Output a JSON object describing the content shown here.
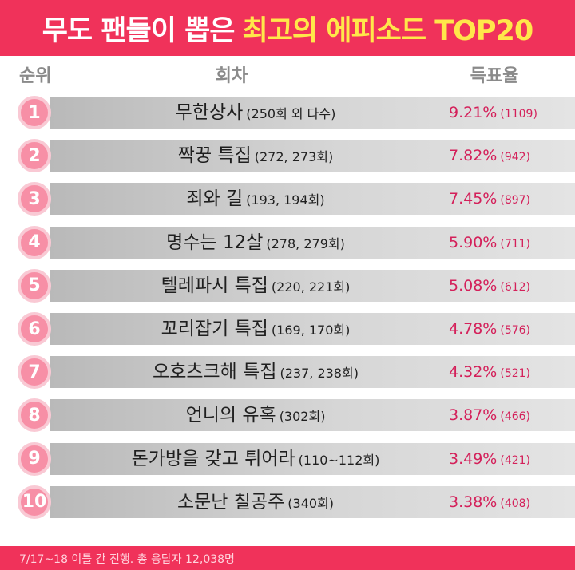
{
  "header": {
    "title_white": "무도 팬들이 뽑은",
    "title_yellow": "최고의 에피소드 TOP20"
  },
  "columns": {
    "rank": "순위",
    "episode": "회차",
    "vote": "득표율"
  },
  "chart_data": {
    "type": "table",
    "columns": [
      "순위",
      "회차",
      "득표율"
    ],
    "rows": [
      {
        "rank": "1",
        "name": "무한상사",
        "episodes": "(250회 외 다수)",
        "percent": "9.21%",
        "count": "(1109)"
      },
      {
        "rank": "2",
        "name": "짝꿍 특집",
        "episodes": "(272, 273회)",
        "percent": "7.82%",
        "count": "(942)"
      },
      {
        "rank": "3",
        "name": "죄와 길",
        "episodes": "(193, 194회)",
        "percent": "7.45%",
        "count": "(897)"
      },
      {
        "rank": "4",
        "name": "명수는 12살",
        "episodes": "(278, 279회)",
        "percent": "5.90%",
        "count": "(711)"
      },
      {
        "rank": "5",
        "name": "텔레파시 특집",
        "episodes": "(220, 221회)",
        "percent": "5.08%",
        "count": "(612)"
      },
      {
        "rank": "6",
        "name": "꼬리잡기 특집",
        "episodes": "(169, 170회)",
        "percent": "4.78%",
        "count": "(576)"
      },
      {
        "rank": "7",
        "name": "오호츠크해 특집",
        "episodes": "(237, 238회)",
        "percent": "4.32%",
        "count": "(521)"
      },
      {
        "rank": "8",
        "name": "언니의 유혹",
        "episodes": "(302회)",
        "percent": "3.87%",
        "count": "(466)"
      },
      {
        "rank": "9",
        "name": "돈가방을 갖고 튀어라",
        "episodes": "(110~112회)",
        "percent": "3.49%",
        "count": "(421)"
      },
      {
        "rank": "10",
        "name": "소문난 칠공주",
        "episodes": "(340회)",
        "percent": "3.38%",
        "count": "(408)"
      }
    ]
  },
  "footer": {
    "note": "7/17~18 이틀 간 진행. 총 응답자 12,038명"
  },
  "colors": {
    "header_bg": "#f0325a",
    "header_accent": "#ffe74a",
    "rank_circle": "#f78fa6",
    "percent_text": "#d4205a"
  }
}
